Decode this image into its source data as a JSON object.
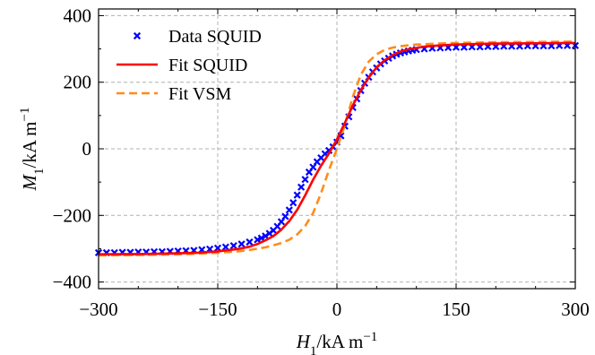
{
  "chart_data": {
    "type": "scatter",
    "xlabel": {
      "main": "H",
      "sub": "1",
      "unit": "/kA m",
      "exp": "−1"
    },
    "ylabel": {
      "main": "M",
      "sub": "1",
      "unit": "/kA m",
      "exp": "−1"
    },
    "xlim": [
      -300,
      300
    ],
    "ylim": [
      -420,
      420
    ],
    "xticks": [
      -300,
      -150,
      0,
      150,
      300
    ],
    "xtick_labels": [
      "−300",
      "−150",
      "0",
      "150",
      "300"
    ],
    "yticks": [
      -400,
      -200,
      0,
      200,
      400
    ],
    "ytick_labels": [
      "−400",
      "−200",
      "0",
      "200",
      "400"
    ],
    "grid": true,
    "legend_position": "top-left",
    "series": [
      {
        "name": "Data SQUID",
        "kind": "markers",
        "marker": "x",
        "color": "#0000ff",
        "x": [
          -300,
          -290,
          -280,
          -270,
          -260,
          -250,
          -240,
          -230,
          -220,
          -210,
          -200,
          -190,
          -180,
          -170,
          -160,
          -150,
          -140,
          -130,
          -120,
          -110,
          -100,
          -95,
          -90,
          -85,
          -80,
          -75,
          -70,
          -65,
          -60,
          -55,
          -50,
          -45,
          -40,
          -35,
          -30,
          -25,
          -20,
          -15,
          -10,
          -5,
          0,
          5,
          10,
          15,
          20,
          25,
          30,
          35,
          40,
          45,
          50,
          55,
          60,
          65,
          70,
          75,
          80,
          85,
          90,
          95,
          100,
          110,
          120,
          130,
          140,
          150,
          160,
          170,
          180,
          190,
          200,
          210,
          220,
          230,
          240,
          250,
          260,
          270,
          280,
          290,
          300
        ],
        "y": [
          -312,
          -312,
          -312,
          -311,
          -311,
          -310,
          -310,
          -309,
          -309,
          -308,
          -307,
          -306,
          -305,
          -303,
          -301,
          -298,
          -295,
          -291,
          -286,
          -280,
          -273,
          -268,
          -262,
          -254,
          -245,
          -233,
          -219,
          -203,
          -184,
          -162,
          -139,
          -115,
          -92,
          -70,
          -55,
          -39,
          -27,
          -15,
          -5,
          6,
          20,
          39,
          68,
          96,
          124,
          150,
          175,
          197,
          215,
          231,
          243,
          255,
          264,
          272,
          279,
          284,
          288,
          291,
          294,
          296,
          298,
          300,
          302,
          303,
          304,
          305,
          305,
          306,
          306,
          307,
          307,
          308,
          308,
          308,
          309,
          309,
          309,
          309,
          310,
          310,
          310
        ]
      },
      {
        "name": "Fit SQUID",
        "kind": "line",
        "style": "solid",
        "color": "#ff0000",
        "x": [
          -300,
          -250,
          -200,
          -175,
          -150,
          -125,
          -110,
          -100,
          -90,
          -80,
          -70,
          -60,
          -50,
          -40,
          -30,
          -20,
          -10,
          0,
          10,
          20,
          30,
          40,
          50,
          60,
          70,
          80,
          90,
          100,
          110,
          125,
          150,
          175,
          200,
          250,
          300
        ],
        "y": [
          -317,
          -316,
          -314,
          -312,
          -308,
          -301,
          -294,
          -286,
          -275,
          -262,
          -243,
          -217,
          -183,
          -140,
          -93,
          -51,
          -14,
          28,
          78,
          130,
          176,
          214,
          245,
          266,
          281,
          292,
          299,
          303,
          307,
          310,
          313,
          315,
          316,
          317,
          318
        ]
      },
      {
        "name": "Fit VSM",
        "kind": "line",
        "style": "dashed",
        "color": "#ff8c1a",
        "x": [
          -300,
          -250,
          -200,
          -175,
          -150,
          -125,
          -110,
          -100,
          -90,
          -80,
          -70,
          -60,
          -50,
          -40,
          -30,
          -20,
          -10,
          0,
          10,
          20,
          30,
          40,
          50,
          60,
          70,
          80,
          90,
          100,
          110,
          125,
          150,
          175,
          200,
          250,
          300
        ],
        "y": [
          -320,
          -319,
          -317,
          -315,
          -312,
          -308,
          -304,
          -300,
          -296,
          -290,
          -283,
          -273,
          -257,
          -232,
          -193,
          -133,
          -64,
          0,
          72,
          156,
          222,
          262,
          284,
          297,
          304,
          308,
          311,
          313,
          314,
          316,
          318,
          319,
          320,
          321,
          322
        ]
      }
    ]
  }
}
